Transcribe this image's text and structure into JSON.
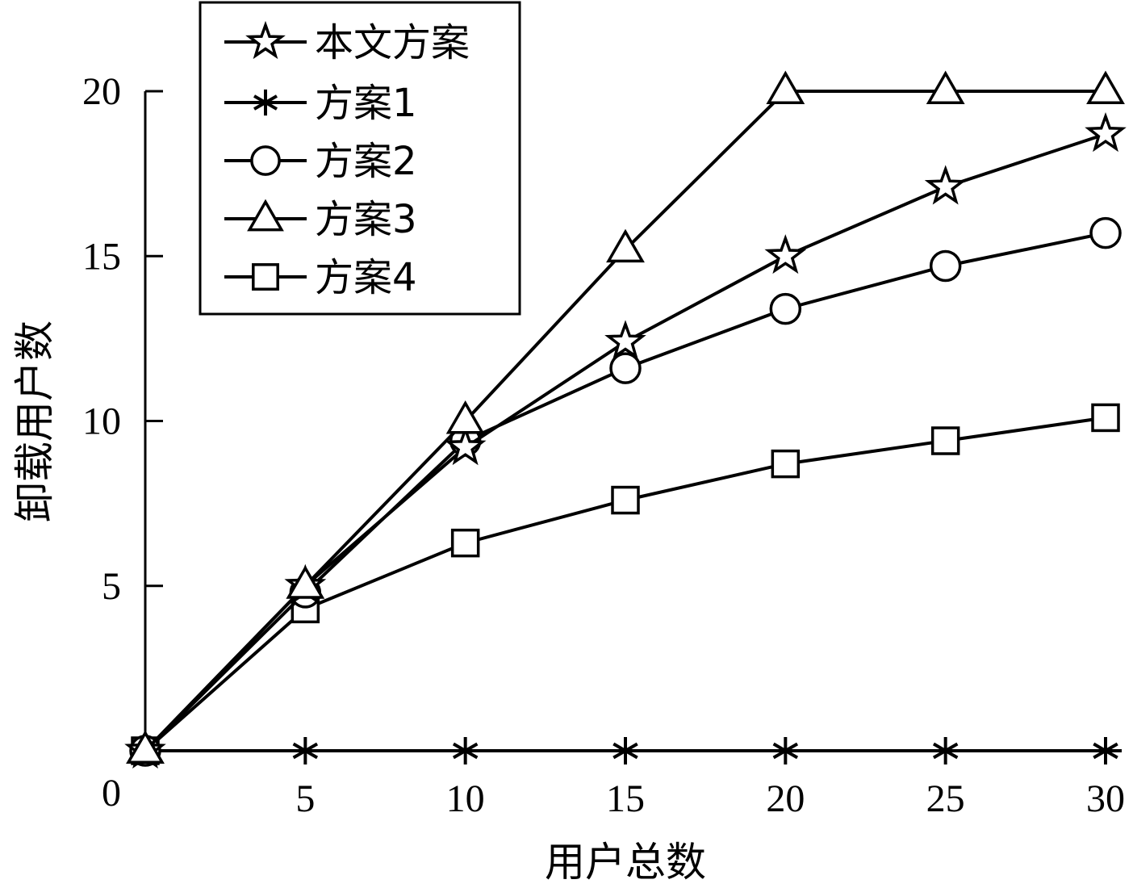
{
  "chart_data": {
    "type": "line",
    "title": "",
    "xlabel": "用户总数",
    "ylabel": "卸载用户数",
    "x": [
      0,
      5,
      10,
      15,
      20,
      25,
      30
    ],
    "x_ticks": [
      "5",
      "10",
      "15",
      "20",
      "25",
      "30"
    ],
    "y_ticks": [
      "0",
      "5",
      "10",
      "15",
      "20"
    ],
    "xlim": [
      0,
      30
    ],
    "ylim": [
      0,
      20
    ],
    "grid": false,
    "legend_position": "top-left",
    "series": [
      {
        "name": "本文方案",
        "marker": "star",
        "values": [
          0,
          5,
          9.2,
          12.4,
          15,
          17.1,
          18.7
        ]
      },
      {
        "name": "方案1",
        "marker": "asterisk",
        "values": [
          0,
          0,
          0,
          0,
          0,
          0,
          0
        ]
      },
      {
        "name": "方案2",
        "marker": "circle",
        "values": [
          0,
          4.8,
          9.4,
          11.6,
          13.4,
          14.7,
          15.7
        ]
      },
      {
        "name": "方案3",
        "marker": "triangle",
        "values": [
          0,
          5,
          10,
          15.2,
          20,
          20,
          20
        ]
      },
      {
        "name": "方案4",
        "marker": "square",
        "values": [
          0,
          4.3,
          6.3,
          7.6,
          8.7,
          9.4,
          10.1
        ]
      }
    ]
  }
}
